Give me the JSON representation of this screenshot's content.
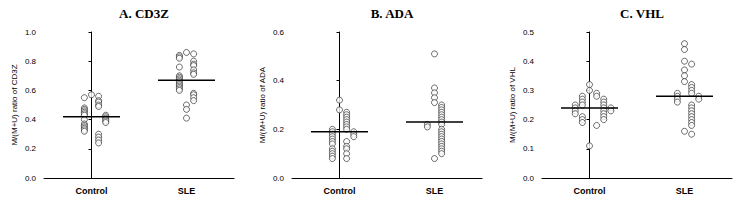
{
  "chart_data": [
    {
      "type": "scatter",
      "title": "A. CD3Z",
      "y_label": "M/(M+U) ratio of CD3Z",
      "categories": [
        "Control",
        "SLE"
      ],
      "values": [
        [
          0.57,
          0.56,
          0.55,
          0.53,
          0.52,
          0.5,
          0.49,
          0.48,
          0.47,
          0.46,
          0.45,
          0.44,
          0.43,
          0.43,
          0.42,
          0.41,
          0.4,
          0.4,
          0.39,
          0.38,
          0.37,
          0.36,
          0.35,
          0.34,
          0.33,
          0.32,
          0.3,
          0.28,
          0.26,
          0.24
        ],
        [
          0.86,
          0.85,
          0.84,
          0.83,
          0.82,
          0.8,
          0.78,
          0.77,
          0.76,
          0.74,
          0.72,
          0.71,
          0.7,
          0.69,
          0.68,
          0.67,
          0.66,
          0.65,
          0.64,
          0.63,
          0.62,
          0.61,
          0.6,
          0.58,
          0.57,
          0.55,
          0.53,
          0.5,
          0.47,
          0.41
        ]
      ],
      "means": [
        0.42,
        0.67
      ],
      "color": "#333333",
      "marker": "circle",
      "ylim": [
        0,
        1.0
      ],
      "yticks": [
        {
          "value": 0,
          "label": "0.0"
        },
        0.2,
        0.4,
        0.6,
        0.8,
        {
          "value": 1.0,
          "label": "1.0"
        }
      ],
      "grid": false
    },
    {
      "type": "scatter",
      "title": "B. ADA",
      "y_label": "M/(M+U) ratio of ADA",
      "categories": [
        "Control",
        "SLE"
      ],
      "values": [
        [
          0.32,
          0.28,
          0.27,
          0.26,
          0.25,
          0.24,
          0.23,
          0.22,
          0.21,
          0.2,
          0.2,
          0.19,
          0.19,
          0.18,
          0.18,
          0.17,
          0.17,
          0.16,
          0.15,
          0.15,
          0.14,
          0.13,
          0.12,
          0.12,
          0.11,
          0.1,
          0.1,
          0.09,
          0.08,
          0.08
        ],
        [
          0.51,
          0.37,
          0.35,
          0.33,
          0.31,
          0.3,
          0.29,
          0.28,
          0.27,
          0.26,
          0.25,
          0.24,
          0.23,
          0.22,
          0.22,
          0.21,
          0.2,
          0.19,
          0.18,
          0.17,
          0.16,
          0.15,
          0.14,
          0.13,
          0.12,
          0.11,
          0.1,
          0.08
        ]
      ],
      "means": [
        0.19,
        0.23
      ],
      "color": "#333333",
      "marker": "circle",
      "ylim": [
        0,
        0.6
      ],
      "yticks": [
        {
          "value": 0,
          "label": "0.0"
        },
        0.2,
        0.4,
        0.6
      ],
      "grid": false
    },
    {
      "type": "scatter",
      "title": "C. VHL",
      "y_label": "M/(M+U) ratio of VHL",
      "categories": [
        "Control",
        "SLE"
      ],
      "values": [
        [
          0.32,
          0.3,
          0.29,
          0.28,
          0.28,
          0.27,
          0.27,
          0.26,
          0.26,
          0.25,
          0.25,
          0.25,
          0.24,
          0.24,
          0.24,
          0.23,
          0.23,
          0.23,
          0.22,
          0.22,
          0.21,
          0.21,
          0.2,
          0.2,
          0.19,
          0.18,
          0.11
        ],
        [
          0.46,
          0.44,
          0.4,
          0.39,
          0.37,
          0.35,
          0.33,
          0.32,
          0.31,
          0.3,
          0.29,
          0.29,
          0.28,
          0.28,
          0.27,
          0.27,
          0.26,
          0.25,
          0.24,
          0.23,
          0.22,
          0.21,
          0.2,
          0.19,
          0.18,
          0.16,
          0.15
        ]
      ],
      "means": [
        0.24,
        0.28
      ],
      "color": "#333333",
      "marker": "circle",
      "ylim": [
        0,
        0.5
      ],
      "yticks": [
        {
          "value": 0,
          "label": "0.0"
        },
        0.1,
        0.2,
        0.3,
        0.4,
        0.5
      ],
      "grid": false
    }
  ]
}
